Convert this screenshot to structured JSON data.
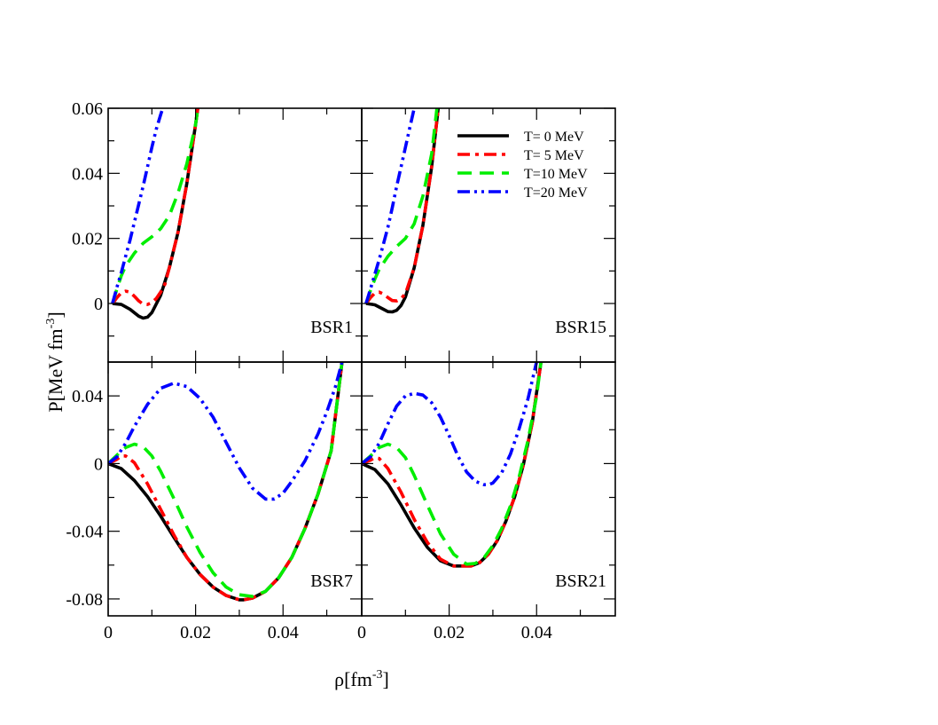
{
  "chart_data": {
    "type": "line",
    "xlabel": "ρ[fm",
    "xlabel_sup": "-3",
    "xlabel_close": "]",
    "ylabel": "P[MeV fm",
    "ylabel_sup": "-3",
    "ylabel_close": "]",
    "xlim": [
      0,
      0.058
    ],
    "xticks": [
      0,
      0.02,
      0.04
    ],
    "xtick_labels": [
      "0",
      "0.02",
      "0.04"
    ],
    "top_ylim": [
      -0.018,
      0.06
    ],
    "top_yticks": [
      0,
      0.02,
      0.04,
      0.06
    ],
    "top_ytick_labels": [
      "0",
      "0.02",
      "0.04",
      "0.06"
    ],
    "bottom_ylim": [
      -0.09,
      0.06
    ],
    "bottom_yticks": [
      -0.08,
      -0.04,
      0,
      0.04
    ],
    "bottom_ytick_labels": [
      "-0.08",
      "-0.04",
      "0",
      "0.04"
    ],
    "legend": [
      {
        "label": "T= 0  MeV",
        "color": "#000000",
        "style": "solid"
      },
      {
        "label": "T= 5  MeV",
        "color": "#ff0000",
        "style": "dashdot"
      },
      {
        "label": "T=10 MeV",
        "color": "#00ee00",
        "style": "dashed"
      },
      {
        "label": "T=20 MeV",
        "color": "#0000ff",
        "style": "dashdotdot"
      }
    ],
    "panels": [
      {
        "name": "BSR1",
        "row": "top",
        "col": "left",
        "series": [
          {
            "name": "T= 0  MeV",
            "x": [
              0.001,
              0.003,
              0.005,
              0.007,
              0.008,
              0.009,
              0.01,
              0.012,
              0.014,
              0.016,
              0.018,
              0.02,
              0.0205
            ],
            "y": [
              0.0,
              -0.0003,
              -0.0018,
              -0.0039,
              -0.0045,
              -0.0042,
              -0.0028,
              0.0025,
              0.011,
              0.022,
              0.037,
              0.055,
              0.06
            ]
          },
          {
            "name": "T= 5  MeV",
            "x": [
              0.001,
              0.002,
              0.003,
              0.004,
              0.005,
              0.006,
              0.007,
              0.008,
              0.009,
              0.01,
              0.011,
              0.012,
              0.013,
              0.014,
              0.016,
              0.018,
              0.02,
              0.0205
            ],
            "y": [
              0.0,
              0.0018,
              0.0033,
              0.0038,
              0.0035,
              0.0022,
              0.0008,
              -0.0002,
              -0.0003,
              0.0003,
              0.0015,
              0.0035,
              0.006,
              0.011,
              0.022,
              0.037,
              0.055,
              0.06
            ]
          },
          {
            "name": "T=10 MeV",
            "x": [
              0.001,
              0.002,
              0.003,
              0.004,
              0.006,
              0.008,
              0.01,
              0.012,
              0.014,
              0.016,
              0.018,
              0.02,
              0.0205
            ],
            "y": [
              0.0,
              0.0045,
              0.0085,
              0.0115,
              0.0155,
              0.0185,
              0.0205,
              0.023,
              0.027,
              0.034,
              0.043,
              0.055,
              0.06
            ]
          },
          {
            "name": "T=20 MeV",
            "x": [
              0.001,
              0.002,
              0.003,
              0.004,
              0.005,
              0.006,
              0.007,
              0.008,
              0.009,
              0.01,
              0.011,
              0.012,
              0.0125
            ],
            "y": [
              0.0,
              0.005,
              0.0095,
              0.0145,
              0.0195,
              0.025,
              0.0305,
              0.036,
              0.042,
              0.048,
              0.0535,
              0.058,
              0.06
            ]
          }
        ]
      },
      {
        "name": "BSR15",
        "row": "top",
        "col": "right",
        "series": [
          {
            "name": "T= 0  MeV",
            "x": [
              0.001,
              0.003,
              0.005,
              0.006,
              0.007,
              0.008,
              0.009,
              0.01,
              0.012,
              0.014,
              0.016,
              0.0175
            ],
            "y": [
              0.0,
              -0.0004,
              -0.0018,
              -0.0025,
              -0.0026,
              -0.0021,
              -0.0006,
              0.002,
              0.011,
              0.024,
              0.042,
              0.06
            ]
          },
          {
            "name": "T= 5  MeV",
            "x": [
              0.001,
              0.002,
              0.003,
              0.004,
              0.005,
              0.006,
              0.007,
              0.008,
              0.009,
              0.01,
              0.012,
              0.014,
              0.016,
              0.0175
            ],
            "y": [
              0.0,
              0.0018,
              0.0032,
              0.0035,
              0.0029,
              0.0018,
              0.0009,
              0.0008,
              0.0015,
              0.003,
              0.011,
              0.024,
              0.042,
              0.06
            ]
          },
          {
            "name": "T=10 MeV",
            "x": [
              0.001,
              0.002,
              0.003,
              0.004,
              0.006,
              0.008,
              0.01,
              0.012,
              0.014,
              0.016,
              0.0172
            ],
            "y": [
              0.0,
              0.004,
              0.0075,
              0.0105,
              0.0145,
              0.0175,
              0.02,
              0.0245,
              0.033,
              0.046,
              0.06
            ]
          },
          {
            "name": "T=20 MeV",
            "x": [
              0.001,
              0.002,
              0.003,
              0.004,
              0.005,
              0.006,
              0.007,
              0.008,
              0.009,
              0.01,
              0.011,
              0.012
            ],
            "y": [
              0.0,
              0.0045,
              0.009,
              0.0135,
              0.0185,
              0.0235,
              0.0295,
              0.036,
              0.042,
              0.048,
              0.054,
              0.06
            ]
          }
        ]
      },
      {
        "name": "BSR7",
        "row": "bottom",
        "col": "left",
        "series": [
          {
            "name": "T= 0  MeV",
            "x": [
              0.0,
              0.003,
              0.006,
              0.009,
              0.012,
              0.015,
              0.018,
              0.021,
              0.024,
              0.027,
              0.03,
              0.031,
              0.033,
              0.036,
              0.039,
              0.042,
              0.045,
              0.048,
              0.051,
              0.0535
            ],
            "y": [
              0.0,
              -0.003,
              -0.01,
              -0.0195,
              -0.031,
              -0.0435,
              -0.0555,
              -0.0655,
              -0.073,
              -0.078,
              -0.0805,
              -0.0805,
              -0.0795,
              -0.0755,
              -0.0675,
              -0.0555,
              -0.0385,
              -0.018,
              0.0075,
              0.06
            ]
          },
          {
            "name": "T= 5  MeV",
            "x": [
              0.0,
              0.002,
              0.003,
              0.004,
              0.006,
              0.009,
              0.012,
              0.015,
              0.018,
              0.021,
              0.024,
              0.027,
              0.03,
              0.031,
              0.033,
              0.036,
              0.039,
              0.042,
              0.045,
              0.048,
              0.051,
              0.0535
            ],
            "y": [
              0.0,
              0.0025,
              0.0045,
              0.0045,
              0.0005,
              -0.012,
              -0.027,
              -0.042,
              -0.0555,
              -0.0655,
              -0.073,
              -0.078,
              -0.0805,
              -0.0805,
              -0.0795,
              -0.0755,
              -0.0675,
              -0.0555,
              -0.0385,
              -0.018,
              0.0075,
              0.06
            ]
          },
          {
            "name": "T=10 MeV",
            "x": [
              0.0,
              0.002,
              0.004,
              0.006,
              0.008,
              0.01,
              0.012,
              0.015,
              0.018,
              0.021,
              0.024,
              0.027,
              0.03,
              0.033,
              0.036,
              0.039,
              0.042,
              0.045,
              0.048,
              0.051,
              0.0535
            ],
            "y": [
              0.0,
              0.005,
              0.0095,
              0.0115,
              0.01,
              0.0045,
              -0.0045,
              -0.0205,
              -0.0375,
              -0.0525,
              -0.0645,
              -0.073,
              -0.0775,
              -0.0785,
              -0.0755,
              -0.0675,
              -0.0555,
              -0.0385,
              -0.018,
              0.0075,
              0.06
            ]
          },
          {
            "name": "T=20 MeV",
            "x": [
              0.0,
              0.002,
              0.004,
              0.006,
              0.009,
              0.012,
              0.015,
              0.018,
              0.021,
              0.024,
              0.027,
              0.03,
              0.033,
              0.036,
              0.038,
              0.04,
              0.042,
              0.045,
              0.048,
              0.05,
              0.052,
              0.0535
            ],
            "y": [
              0.0,
              0.004,
              0.012,
              0.022,
              0.035,
              0.0445,
              0.0475,
              0.0455,
              0.0385,
              0.0275,
              0.0125,
              -0.0025,
              -0.0145,
              -0.021,
              -0.021,
              -0.0175,
              -0.0105,
              0.0015,
              0.0175,
              0.0305,
              0.0455,
              0.06
            ]
          }
        ]
      },
      {
        "name": "BSR21",
        "row": "bottom",
        "col": "right",
        "series": [
          {
            "name": "T= 0  MeV",
            "x": [
              0.0,
              0.003,
              0.006,
              0.009,
              0.012,
              0.015,
              0.018,
              0.021,
              0.024,
              0.025,
              0.027,
              0.029,
              0.031,
              0.033,
              0.035,
              0.037,
              0.039,
              0.041
            ],
            "y": [
              0.0,
              -0.0035,
              -0.012,
              -0.0245,
              -0.038,
              -0.0495,
              -0.0575,
              -0.0605,
              -0.0605,
              -0.0605,
              -0.0585,
              -0.0535,
              -0.0455,
              -0.034,
              -0.0195,
              -0.0005,
              0.024,
              0.06
            ]
          },
          {
            "name": "T= 5  MeV",
            "x": [
              0.0,
              0.002,
              0.003,
              0.004,
              0.006,
              0.009,
              0.012,
              0.015,
              0.018,
              0.021,
              0.024,
              0.025,
              0.027,
              0.029,
              0.031,
              0.033,
              0.035,
              0.037,
              0.039,
              0.041
            ],
            "y": [
              0.0,
              0.002,
              0.0035,
              0.003,
              -0.003,
              -0.017,
              -0.033,
              -0.0465,
              -0.0565,
              -0.0605,
              -0.0605,
              -0.0605,
              -0.0585,
              -0.0535,
              -0.0455,
              -0.034,
              -0.0195,
              -0.0005,
              0.024,
              0.06
            ]
          },
          {
            "name": "T=10 MeV",
            "x": [
              0.0,
              0.002,
              0.004,
              0.006,
              0.008,
              0.01,
              0.012,
              0.015,
              0.018,
              0.021,
              0.024,
              0.026,
              0.028,
              0.03,
              0.032,
              0.034,
              0.036,
              0.038,
              0.04,
              0.041
            ],
            "y": [
              0.0,
              0.0045,
              0.0095,
              0.0115,
              0.0095,
              0.0035,
              -0.007,
              -0.0245,
              -0.0415,
              -0.0535,
              -0.0595,
              -0.059,
              -0.0555,
              -0.0485,
              -0.0385,
              -0.025,
              -0.008,
              0.0135,
              0.0395,
              0.06
            ]
          },
          {
            "name": "T=20 MeV",
            "x": [
              0.0,
              0.002,
              0.004,
              0.006,
              0.008,
              0.01,
              0.012,
              0.014,
              0.016,
              0.018,
              0.02,
              0.022,
              0.024,
              0.026,
              0.028,
              0.029,
              0.03,
              0.032,
              0.034,
              0.036,
              0.038,
              0.04
            ],
            "y": [
              0.0,
              0.004,
              0.012,
              0.0235,
              0.034,
              0.04,
              0.0415,
              0.0405,
              0.036,
              0.0275,
              0.0165,
              0.0045,
              -0.005,
              -0.0105,
              -0.0125,
              -0.0125,
              -0.0115,
              -0.0055,
              0.0055,
              0.0205,
              0.038,
              0.06
            ]
          }
        ]
      }
    ]
  }
}
